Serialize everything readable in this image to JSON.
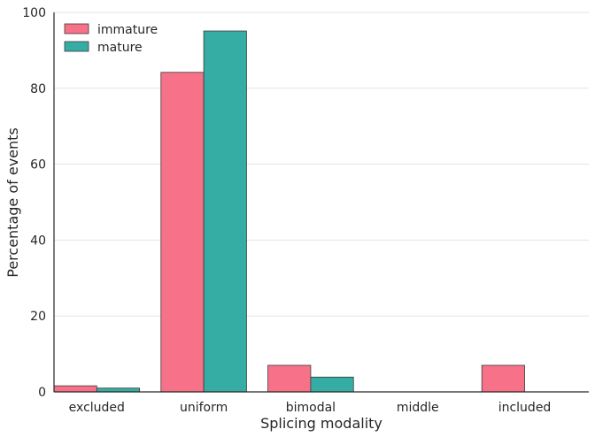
{
  "chart_data": {
    "type": "bar",
    "categories": [
      "excluded",
      "uniform",
      "bimodal",
      "middle",
      "included"
    ],
    "series": [
      {
        "name": "immature",
        "color": "#f77189",
        "values": [
          1.6,
          84.2,
          7.0,
          0,
          7.0
        ]
      },
      {
        "name": "mature",
        "color": "#36ada4",
        "values": [
          1.0,
          95.1,
          3.9,
          0,
          0
        ]
      }
    ],
    "xlabel": "Splicing modality",
    "ylabel": "Percentage of events",
    "ylim": [
      0,
      100
    ],
    "yticks": [
      "0",
      "20",
      "40",
      "60",
      "80",
      "100"
    ],
    "grid": "horizontal",
    "legend_position": "top-left"
  }
}
